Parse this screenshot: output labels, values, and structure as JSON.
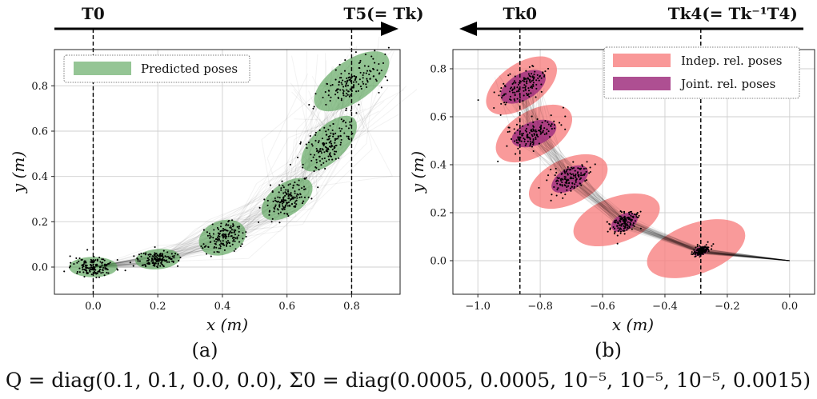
{
  "figure_caption": "Q = diag(0.1, 0.1, 0.0, 0.0),   Σ0 = diag(0.0005, 0.0005, 10⁻⁵, 10⁻⁵, 10⁻⁵, 0.0015)",
  "colors": {
    "green": "#4f9e4f",
    "red": "#f77e7e",
    "purple": "#a0307f",
    "grid": "#cfcfcf",
    "points": "#000000"
  },
  "chart_data": [
    {
      "type": "scatter",
      "panel_label": "(a)",
      "xlabel": "x (m)",
      "ylabel": "y (m)",
      "xlim": [
        -0.12,
        0.95
      ],
      "ylim": [
        -0.12,
        0.96
      ],
      "xticks": [
        0.0,
        0.2,
        0.4,
        0.6,
        0.8
      ],
      "xtick_labels": [
        "0.0",
        "0.2",
        "0.4",
        "0.6",
        "0.8"
      ],
      "yticks": [
        0.0,
        0.2,
        0.4,
        0.6,
        0.8
      ],
      "ytick_labels": [
        "0.0",
        "0.2",
        "0.4",
        "0.6",
        "0.8"
      ],
      "legend": [
        "Predicted poses"
      ],
      "arrow_direction": "right",
      "pose_markers": [
        {
          "label": "T0",
          "x": 0.0
        },
        {
          "label": "T5(= Tk)",
          "x": 0.8
        }
      ],
      "ellipses": [
        {
          "name": "Predicted poses",
          "cx": 0.0,
          "cy": 0.0,
          "rx": 0.075,
          "ry": 0.045,
          "angle": 0
        },
        {
          "name": "Predicted poses",
          "cx": 0.2,
          "cy": 0.035,
          "rx": 0.07,
          "ry": 0.045,
          "angle": 5
        },
        {
          "name": "Predicted poses",
          "cx": 0.4,
          "cy": 0.13,
          "rx": 0.075,
          "ry": 0.075,
          "angle": 20
        },
        {
          "name": "Predicted poses",
          "cx": 0.6,
          "cy": 0.3,
          "rx": 0.09,
          "ry": 0.07,
          "angle": 35
        },
        {
          "name": "Predicted poses",
          "cx": 0.73,
          "cy": 0.545,
          "rx": 0.11,
          "ry": 0.075,
          "angle": 45
        },
        {
          "name": "Predicted poses",
          "cx": 0.8,
          "cy": 0.82,
          "rx": 0.135,
          "ry": 0.09,
          "angle": 35
        }
      ]
    },
    {
      "type": "scatter",
      "panel_label": "(b)",
      "xlabel": "x (m)",
      "ylabel": "y (m)",
      "xlim": [
        -1.08,
        0.08
      ],
      "ylim": [
        -0.14,
        0.88
      ],
      "xticks": [
        -1.0,
        -0.8,
        -0.6,
        -0.4,
        -0.2,
        0.0
      ],
      "xtick_labels": [
        "−1.0",
        "−0.8",
        "−0.6",
        "−0.4",
        "−0.2",
        "0.0"
      ],
      "yticks": [
        0.0,
        0.2,
        0.4,
        0.6,
        0.8
      ],
      "ytick_labels": [
        "0.0",
        "0.2",
        "0.4",
        "0.6",
        "0.8"
      ],
      "legend": [
        "Indep. rel. poses",
        "Joint. rel. poses"
      ],
      "arrow_direction": "left",
      "pose_markers": [
        {
          "label": "Tk0",
          "x": -0.865
        },
        {
          "label": "Tk4(= Tk⁻¹T4)",
          "x": -0.285
        }
      ],
      "red_ellipses": [
        {
          "name": "Indep. rel. poses",
          "cx": -0.86,
          "cy": 0.73,
          "rx": 0.13,
          "ry": 0.09,
          "angle": 35
        },
        {
          "name": "Indep. rel. poses",
          "cx": -0.82,
          "cy": 0.53,
          "rx": 0.135,
          "ry": 0.095,
          "angle": 30
        },
        {
          "name": "Indep. rel. poses",
          "cx": -0.71,
          "cy": 0.33,
          "rx": 0.135,
          "ry": 0.095,
          "angle": 25
        },
        {
          "name": "Indep. rel. poses",
          "cx": -0.555,
          "cy": 0.17,
          "rx": 0.145,
          "ry": 0.095,
          "angle": 20
        },
        {
          "name": "Indep. rel. poses",
          "cx": -0.3,
          "cy": 0.05,
          "rx": 0.165,
          "ry": 0.105,
          "angle": 20
        }
      ],
      "purple_ellipses": [
        {
          "name": "Joint. rel. poses",
          "cx": -0.855,
          "cy": 0.725,
          "rx": 0.08,
          "ry": 0.055,
          "angle": 30
        },
        {
          "name": "Joint. rel. poses",
          "cx": -0.82,
          "cy": 0.53,
          "rx": 0.075,
          "ry": 0.05,
          "angle": 20
        },
        {
          "name": "Joint. rel. poses",
          "cx": -0.705,
          "cy": 0.34,
          "rx": 0.065,
          "ry": 0.045,
          "angle": 30
        },
        {
          "name": "Joint. rel. poses",
          "cx": -0.53,
          "cy": 0.16,
          "rx": 0.045,
          "ry": 0.035,
          "angle": 25
        },
        {
          "name": "Joint. rel. poses",
          "cx": -0.285,
          "cy": 0.04,
          "rx": 0.025,
          "ry": 0.018,
          "angle": 20
        }
      ]
    }
  ]
}
